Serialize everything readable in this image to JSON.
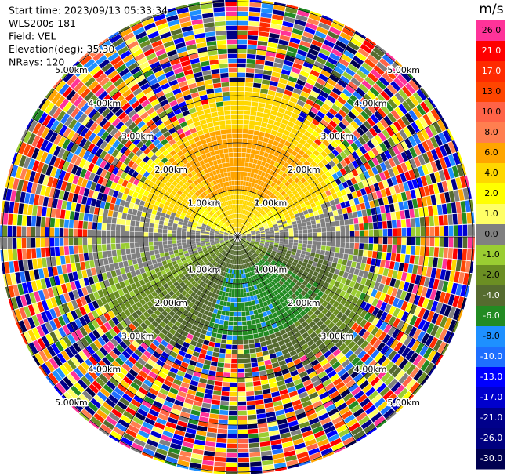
{
  "header": {
    "lines": [
      "Start time: 2023/09/13 05:33:34",
      "WLS200s-181",
      "Field: VEL",
      "Elevation(deg): 35.30",
      "NRays: 120"
    ]
  },
  "rings": {
    "labels": [
      "1.00km",
      "2.00km",
      "3.00km",
      "4.00km",
      "5.00km"
    ]
  },
  "colorbar": {
    "unit": "m/s",
    "ticks": [
      {
        "value": 26,
        "label": "26.0"
      },
      {
        "value": 21,
        "label": "21.0"
      },
      {
        "value": 17,
        "label": "17.0"
      },
      {
        "value": 13,
        "label": "13.0"
      },
      {
        "value": 10,
        "label": "10.0"
      },
      {
        "value": 8,
        "label": "8.0"
      },
      {
        "value": 6,
        "label": "6.0"
      },
      {
        "value": 4,
        "label": "4.0"
      },
      {
        "value": 2,
        "label": "2.0"
      },
      {
        "value": 1,
        "label": "1.0"
      },
      {
        "value": 0,
        "label": "0.0"
      },
      {
        "value": -1,
        "label": "-1.0"
      },
      {
        "value": -2,
        "label": "-2.0"
      },
      {
        "value": -4,
        "label": "-4.0"
      },
      {
        "value": -6,
        "label": "-6.0"
      },
      {
        "value": -8,
        "label": "-8.0"
      },
      {
        "value": -10,
        "label": "-10.0"
      },
      {
        "value": -13,
        "label": "-13.0"
      },
      {
        "value": -17,
        "label": "-17.0"
      },
      {
        "value": -21,
        "label": "-21.0"
      },
      {
        "value": -26,
        "label": "-26.0"
      },
      {
        "value": -30,
        "label": "-30.0"
      }
    ],
    "colors": [
      "#ff3399",
      "#ff0000",
      "#ff2a00",
      "#ff4500",
      "#ff6347",
      "#ff7f50",
      "#ffa500",
      "#ffd700",
      "#ffff00",
      "#ffff66",
      "#808080",
      "#9acd32",
      "#6b8e23",
      "#556b2f",
      "#228b22",
      "#1e90ff",
      "#1e6fff",
      "#0000ff",
      "#0000cd",
      "#00008b",
      "#000080",
      "#000050"
    ]
  }
}
